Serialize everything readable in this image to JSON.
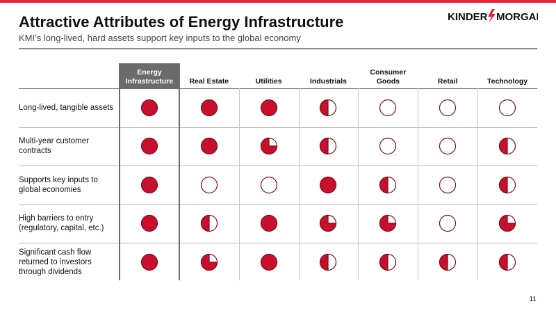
{
  "header": {
    "title": "Attractive Attributes of Energy Infrastructure",
    "subtitle": "KMI’s long-lived, hard assets support key inputs to the global economy",
    "logo_text_left": "KINDER",
    "logo_text_right": "MORGAN"
  },
  "colors": {
    "accent": "#e4243b",
    "fill": "#c8102e",
    "header_bg": "#6b6b6b"
  },
  "table": {
    "columns": [
      "Energy Infrastructure",
      "Real Estate",
      "Utilities",
      "Industrials",
      "Consumer Goods",
      "Retail",
      "Technology"
    ],
    "column_lines": [
      [
        "Energy",
        "Infrastructure"
      ],
      [
        "Real Estate"
      ],
      [
        "Utilities"
      ],
      [
        "Industrials"
      ],
      [
        "Consumer",
        "Goods"
      ],
      [
        "Retail"
      ],
      [
        "Technology"
      ]
    ],
    "rows": [
      {
        "label": "Long-lived, tangible assets",
        "label_lines": [
          "Long-lived, tangible assets"
        ],
        "ratings": [
          1,
          1,
          1,
          0.5,
          0,
          0,
          0
        ]
      },
      {
        "label": "Multi-year customer contracts",
        "label_lines": [
          "Multi-year customer",
          "contracts"
        ],
        "ratings": [
          1,
          1,
          0.75,
          0.5,
          0,
          0,
          0.5
        ]
      },
      {
        "label": "Supports key inputs to global economies",
        "label_lines": [
          "Supports key inputs to",
          "global economies"
        ],
        "ratings": [
          1,
          0,
          0,
          1,
          0.5,
          0,
          0.5
        ]
      },
      {
        "label": "High barriers to entry (regulatory, capital, etc.)",
        "label_lines": [
          "High barriers to entry",
          "(regulatory, capital, etc.)"
        ],
        "ratings": [
          1,
          0.5,
          1,
          0.75,
          0.75,
          0,
          0.75
        ]
      },
      {
        "label": "Significant cash flow returned to investors through dividends",
        "label_lines": [
          "Significant cash flow",
          "returned to investors",
          "through dividends"
        ],
        "ratings": [
          1,
          0.75,
          1,
          0.5,
          0.5,
          0.5,
          0.5
        ]
      }
    ]
  },
  "page_number": "11"
}
